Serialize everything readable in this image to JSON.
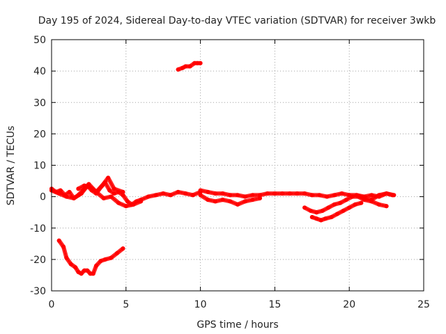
{
  "chart_data": {
    "type": "line",
    "title": "Day 195 of 2024, Sidereal Day-to-day VTEC variation (SDTVAR) for receiver 3wkb",
    "xlabel": "GPS time / hours",
    "ylabel": "SDTVAR / TECUs",
    "xlim": [
      0,
      25
    ],
    "ylim": [
      -30,
      50
    ],
    "xticks": [
      0,
      5,
      10,
      15,
      20,
      25
    ],
    "yticks": [
      -30,
      -20,
      -10,
      0,
      10,
      20,
      30,
      40,
      50
    ],
    "grid": true,
    "series_color": "#ff0000",
    "series": [
      {
        "name": "main-trace",
        "x": [
          0.0,
          0.3,
          0.6,
          0.9,
          1.2,
          1.5,
          1.8,
          2.1,
          2.4,
          2.7,
          3.0,
          3.3,
          3.6,
          3.9,
          4.2,
          4.5,
          4.8,
          5.1,
          5.4,
          5.7,
          6.0,
          6.5,
          7.0,
          7.5,
          8.0,
          8.5,
          9.0,
          9.5,
          10.0
        ],
        "y": [
          2.5,
          1.5,
          2.0,
          0.5,
          1.5,
          -0.5,
          0.5,
          2.0,
          3.5,
          2.0,
          1.0,
          3.0,
          4.5,
          2.0,
          1.0,
          1.5,
          0.5,
          -1.5,
          -2.5,
          -1.5,
          -1.0,
          0.0,
          0.5,
          1.0,
          0.5,
          1.5,
          1.0,
          0.5,
          1.5
        ]
      },
      {
        "name": "trace-b",
        "x": [
          0.0,
          0.5,
          1.0,
          1.5,
          2.0,
          2.5,
          3.0,
          3.5,
          4.0,
          4.5,
          5.0,
          5.5,
          6.0
        ],
        "y": [
          2.0,
          1.0,
          0.0,
          -0.5,
          1.0,
          4.0,
          1.5,
          -0.5,
          0.0,
          -2.0,
          -3.0,
          -2.5,
          -1.5
        ]
      },
      {
        "name": "trace-c",
        "x": [
          1.8,
          2.2,
          2.6,
          3.0,
          3.4,
          3.8,
          4.2,
          4.8
        ],
        "y": [
          2.5,
          3.5,
          3.0,
          1.5,
          3.5,
          6.0,
          2.5,
          1.5
        ]
      },
      {
        "name": "night-trace",
        "x": [
          10.0,
          10.5,
          11.0,
          11.5,
          12.0,
          12.5,
          13.0,
          13.5,
          14.0,
          14.5,
          15.0,
          15.5,
          16.0,
          16.5,
          17.0,
          17.5,
          18.0,
          18.5,
          19.0,
          19.5,
          20.0,
          20.5,
          21.0,
          21.5,
          22.0,
          22.5,
          23.0
        ],
        "y": [
          2.0,
          1.5,
          1.0,
          1.0,
          0.5,
          0.5,
          0.0,
          0.5,
          0.5,
          1.0,
          1.0,
          1.0,
          1.0,
          1.0,
          1.0,
          0.5,
          0.5,
          0.0,
          0.5,
          1.0,
          0.5,
          0.5,
          0.0,
          0.5,
          0.0,
          1.0,
          0.5
        ]
      },
      {
        "name": "night-trace-low",
        "x": [
          10.0,
          10.5,
          11.0,
          11.5,
          12.0,
          12.5,
          13.0,
          13.5,
          14.0
        ],
        "y": [
          0.5,
          -1.0,
          -1.5,
          -1.0,
          -1.5,
          -2.5,
          -1.5,
          -1.0,
          -0.5
        ]
      },
      {
        "name": "evening-dip-a",
        "x": [
          17.0,
          17.4,
          17.8,
          18.2,
          18.6,
          19.0,
          19.4,
          19.8,
          20.2,
          20.6,
          21.0,
          21.5,
          22.0,
          22.5
        ],
        "y": [
          -3.5,
          -4.5,
          -5.0,
          -4.5,
          -3.5,
          -2.5,
          -2.0,
          -1.0,
          0.0,
          0.0,
          -1.0,
          -1.5,
          -2.5,
          -3.0
        ]
      },
      {
        "name": "evening-dip-b",
        "x": [
          17.5,
          17.8,
          18.1,
          18.4,
          18.8,
          19.2,
          19.6,
          20.0,
          20.4,
          20.8
        ],
        "y": [
          -6.5,
          -7.0,
          -7.5,
          -7.0,
          -6.5,
          -5.5,
          -4.5,
          -3.5,
          -2.5,
          -2.0
        ]
      },
      {
        "name": "late-segment",
        "x": [
          20.5,
          21.0,
          21.5,
          22.0,
          22.5,
          22.9
        ],
        "y": [
          0.5,
          -0.5,
          -1.0,
          0.5,
          1.0,
          0.5
        ]
      },
      {
        "name": "morning-dip",
        "x": [
          0.5,
          0.8,
          1.0,
          1.3,
          1.6,
          1.8,
          2.0,
          2.2,
          2.4,
          2.6,
          2.8,
          3.0,
          3.3,
          3.6,
          4.0,
          4.4,
          4.8
        ],
        "y": [
          -14.0,
          -16.0,
          -19.5,
          -21.5,
          -22.5,
          -24.0,
          -24.5,
          -23.5,
          -23.5,
          -24.5,
          -24.5,
          -22.0,
          -20.5,
          -20.0,
          -19.5,
          -18.0,
          -16.5
        ]
      },
      {
        "name": "outlier-segment",
        "x": [
          8.5,
          8.8,
          9.0,
          9.3,
          9.6,
          9.8,
          10.0
        ],
        "y": [
          40.5,
          41.0,
          41.5,
          41.5,
          42.5,
          42.5,
          42.5
        ]
      }
    ]
  }
}
